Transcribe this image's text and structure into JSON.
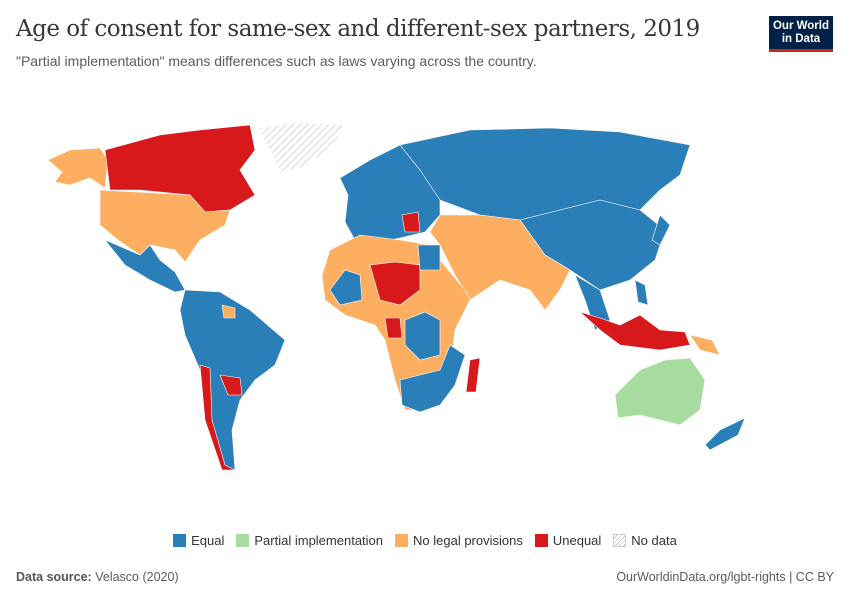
{
  "header": {
    "title": "Age of consent for same-sex and different-sex partners, 2019",
    "subtitle": "\"Partial implementation\" means differences such as laws varying across the country.",
    "logo_line1": "Our World",
    "logo_line2": "in Data"
  },
  "legend": [
    {
      "label": "Equal",
      "color": "#2a7fb8"
    },
    {
      "label": "Partial implementation",
      "color": "#a8dba0"
    },
    {
      "label": "No legal provisions",
      "color": "#fdae61"
    },
    {
      "label": "Unequal",
      "color": "#d7191c"
    },
    {
      "label": "No data",
      "color": "hatched"
    }
  ],
  "footer": {
    "source_label": "Data source:",
    "source": "Velasco (2020)",
    "link": "OurWorldinData.org/lgbt-rights | CC BY"
  }
}
